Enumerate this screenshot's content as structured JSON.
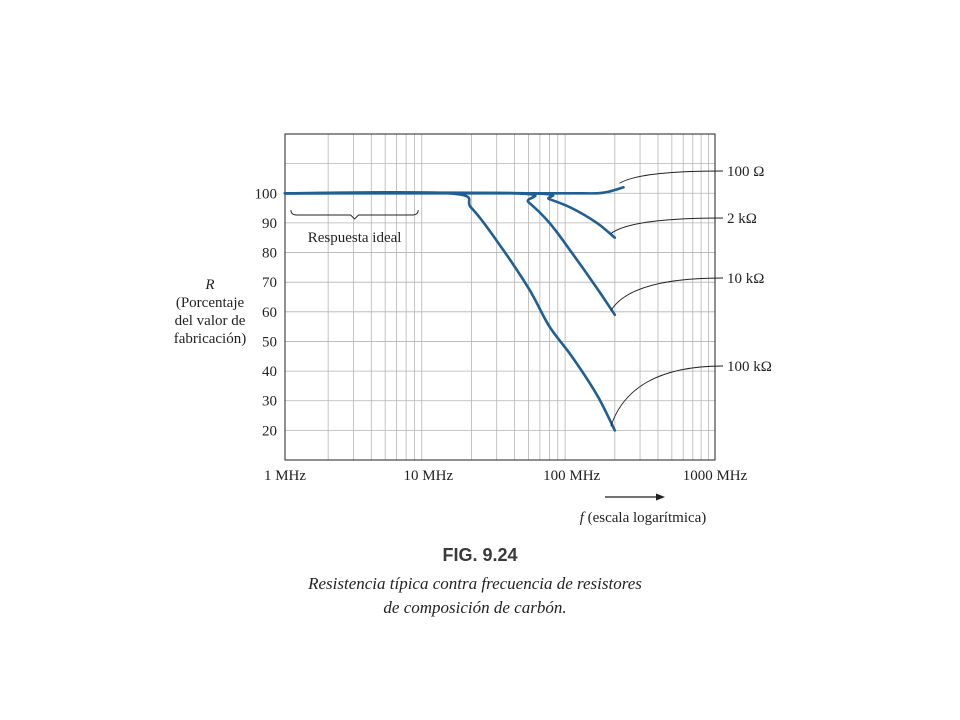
{
  "chart_data": {
    "type": "line",
    "x_scale": "log",
    "x_range": [
      "1 MHz",
      "1000 MHz"
    ],
    "xlim": [
      1,
      1000
    ],
    "ylim": [
      10,
      120
    ],
    "grid": true,
    "xlabel": "f (escala logarítmica)",
    "ylabel": [
      "R",
      "(Porcentaje",
      "del valor de",
      "fabricación)"
    ],
    "y_ticks": [
      20,
      30,
      40,
      50,
      60,
      70,
      80,
      90,
      100
    ],
    "x_ticks": [
      {
        "value": 1,
        "label": "1 MHz"
      },
      {
        "value": 10,
        "label": "10 MHz"
      },
      {
        "value": 100,
        "label": "100 MHz"
      },
      {
        "value": 1000,
        "label": "1000 MHz"
      }
    ],
    "annotation": "Respuesta ideal",
    "annotation_range_mhz": [
      1.1,
      8.5
    ],
    "series": [
      {
        "name": "100 Ω",
        "x": [
          1,
          50,
          100,
          150,
          180,
          230
        ],
        "y": [
          100,
          100,
          100,
          100,
          100.5,
          102
        ]
      },
      {
        "name": "2 kΩ",
        "x": [
          1,
          50,
          70,
          100,
          150,
          200
        ],
        "y": [
          100,
          100,
          98,
          95,
          90,
          85
        ]
      },
      {
        "name": "10 kΩ",
        "x": [
          1,
          40,
          50,
          70,
          100,
          150,
          200
        ],
        "y": [
          100,
          100,
          97,
          90,
          80,
          68,
          59
        ]
      },
      {
        "name": "100 kΩ",
        "x": [
          1,
          14,
          20,
          30,
          50,
          70,
          100,
          150,
          200
        ],
        "y": [
          100,
          100,
          95,
          84,
          68,
          55,
          45,
          32,
          20
        ]
      }
    ]
  },
  "figure": {
    "title": "FIG. 9.24",
    "caption_line1": "Resistencia típica contra frecuencia de resistores",
    "caption_line2": "de composición de carbón."
  }
}
